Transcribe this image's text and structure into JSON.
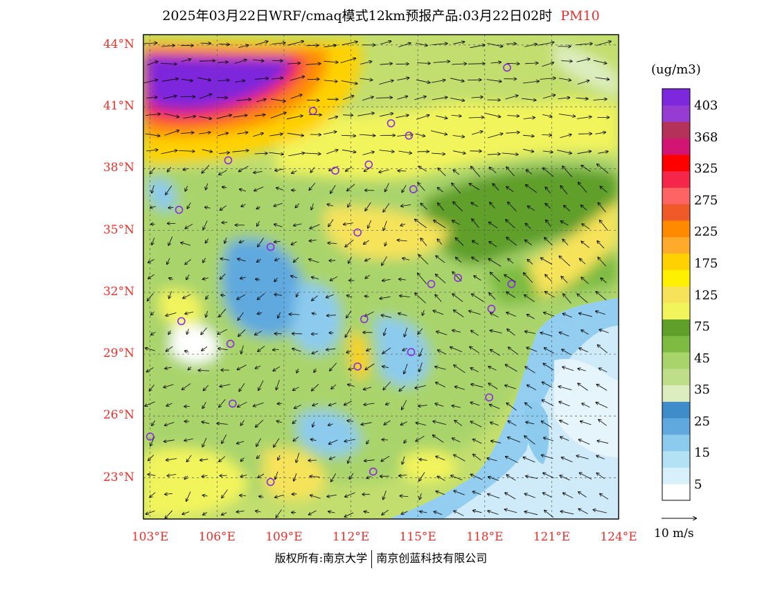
{
  "title": {
    "main": "2025年03月22日WRF/cmaq模式12km预报产品:03月22日02时",
    "pollutant": "PM10"
  },
  "map": {
    "lon_range": [
      102.7,
      124
    ],
    "lat_range": [
      21,
      44.5
    ],
    "lat_ticks": [
      {
        "value": 44,
        "label": "44°N"
      },
      {
        "value": 41,
        "label": "41°N"
      },
      {
        "value": 38,
        "label": "38°N"
      },
      {
        "value": 35,
        "label": "35°N"
      },
      {
        "value": 32,
        "label": "32°N"
      },
      {
        "value": 29,
        "label": "29°N"
      },
      {
        "value": 26,
        "label": "26°N"
      },
      {
        "value": 23,
        "label": "23°N"
      }
    ],
    "lon_ticks": [
      {
        "value": 103,
        "label": "103°E"
      },
      {
        "value": 106,
        "label": "106°E"
      },
      {
        "value": 109,
        "label": "109°E"
      },
      {
        "value": 112,
        "label": "112°E"
      },
      {
        "value": 115,
        "label": "115°E"
      },
      {
        "value": 118,
        "label": "118°E"
      },
      {
        "value": 121,
        "label": "121°E"
      },
      {
        "value": 124,
        "label": "124°E"
      }
    ],
    "city_markers": [
      [
        119.0,
        42.9
      ],
      [
        110.3,
        40.8
      ],
      [
        113.8,
        40.2
      ],
      [
        114.6,
        39.6
      ],
      [
        106.5,
        38.4
      ],
      [
        111.3,
        37.9
      ],
      [
        112.8,
        38.2
      ],
      [
        114.8,
        37.0
      ],
      [
        104.3,
        36.0
      ],
      [
        112.3,
        34.9
      ],
      [
        108.4,
        34.2
      ],
      [
        115.6,
        32.4
      ],
      [
        116.8,
        32.7
      ],
      [
        119.2,
        32.4
      ],
      [
        118.3,
        31.2
      ],
      [
        104.4,
        30.6
      ],
      [
        112.6,
        30.7
      ],
      [
        106.6,
        29.5
      ],
      [
        114.7,
        29.1
      ],
      [
        112.3,
        28.4
      ],
      [
        106.7,
        26.6
      ],
      [
        118.2,
        26.9
      ],
      [
        103.0,
        25.0
      ],
      [
        108.4,
        22.8
      ],
      [
        113.0,
        23.3
      ]
    ],
    "colors": {
      "background": "#c2de6e",
      "ocean": "#cfeaf8",
      "marker": "#8a2be2",
      "arrow": "#000000"
    }
  },
  "colorbar": {
    "unit": "(ug/m3)",
    "colors": [
      "#ffffff",
      "#d8f0fa",
      "#b4e2f5",
      "#8ccbee",
      "#5fa9df",
      "#3e8cca",
      "#dcedbf",
      "#bfde8a",
      "#a9d46c",
      "#7dbb42",
      "#5f9f2a",
      "#f2f45c",
      "#f6e35a",
      "#fff000",
      "#ffd100",
      "#ffaa2a",
      "#ff8a00",
      "#f05a28",
      "#ff6464",
      "#f5264a",
      "#ff0000",
      "#d21472",
      "#b4325a",
      "#963cd2",
      "#7d28dc"
    ],
    "labels": [
      "5",
      "15",
      "25",
      "35",
      "45",
      "75",
      "125",
      "175",
      "225",
      "275",
      "325",
      "368",
      "403"
    ]
  },
  "wind_reference": {
    "label": "10 m/s"
  },
  "footer": {
    "left": "版权所有:南京大学",
    "right": "南京创蓝科技有限公司"
  }
}
